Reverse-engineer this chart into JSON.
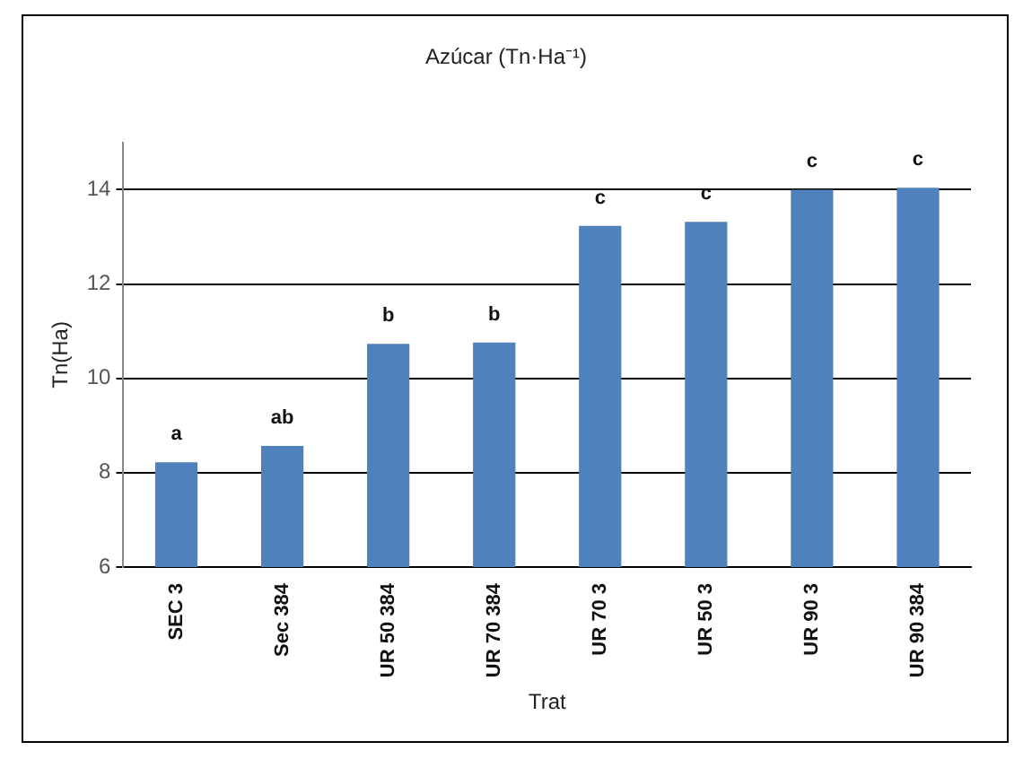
{
  "chart_data": {
    "type": "bar",
    "title": "Azúcar (Tn·Ha⁻¹)",
    "xlabel": "Trat",
    "ylabel": "Tn(Ha)",
    "categories": [
      "SEC 3",
      "Sec 384",
      "UR 50 384",
      "UR 70 384",
      "UR 70 3",
      "UR 50 3",
      "UR 90 3",
      "UR 90 384"
    ],
    "values": [
      8.22,
      8.57,
      10.73,
      10.76,
      13.23,
      13.32,
      14.0,
      14.04
    ],
    "color": "#4f81bd",
    "ylim": [
      6,
      15
    ],
    "yticks": [
      6,
      8,
      10,
      12,
      14
    ],
    "grid": "y",
    "legend": false,
    "annotations": [
      {
        "text": "a",
        "x": "SEC 3",
        "y": 8.22
      },
      {
        "text": "ab",
        "x": "Sec 384",
        "y": 8.57
      },
      {
        "text": "b",
        "x": "UR 50 384",
        "y": 10.73
      },
      {
        "text": "b",
        "x": "UR 70 384",
        "y": 10.76
      },
      {
        "text": "c",
        "x": "UR 70 3",
        "y": 13.23
      },
      {
        "text": "c",
        "x": "UR 50 3",
        "y": 13.32
      },
      {
        "text": "c",
        "x": "UR 90 3",
        "y": 14.0
      },
      {
        "text": "c",
        "x": "UR 90 384",
        "y": 14.04
      }
    ]
  }
}
